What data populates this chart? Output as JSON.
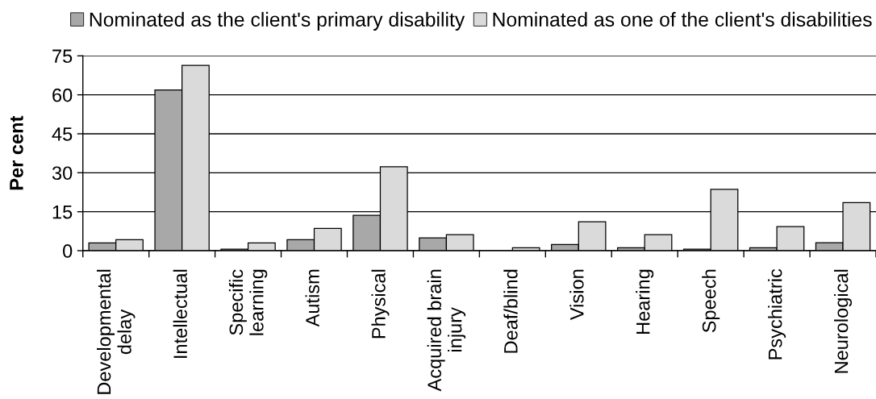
{
  "chart_data": {
    "type": "bar",
    "ylabel": "Per cent",
    "categories": [
      "Developmental\ndelay",
      "Intellectual",
      "Specific\nlearning",
      "Autism",
      "Physical",
      "Acquired brain\ninjury",
      "Deaf/blind",
      "Vision",
      "Hearing",
      "Speech",
      "Psychiatric",
      "Neurological"
    ],
    "series": [
      {
        "name": "Nominated as the client's primary disability",
        "color": "#a8a8a8",
        "values": [
          3.0,
          61.9,
          0.6,
          4.2,
          13.6,
          4.9,
          null,
          2.4,
          1.1,
          0.6,
          1.1,
          3.1
        ]
      },
      {
        "name": "Nominated as one of the client's disabilities",
        "color": "#dadada",
        "values": [
          4.2,
          71.3,
          3.0,
          8.6,
          32.3,
          6.2,
          1.1,
          11.1,
          6.2,
          23.6,
          9.3,
          18.5
        ]
      }
    ],
    "ylim": [
      0,
      75
    ],
    "yticks": [
      0,
      15,
      30,
      45,
      60,
      75
    ],
    "grid": "y",
    "legend": "top"
  }
}
